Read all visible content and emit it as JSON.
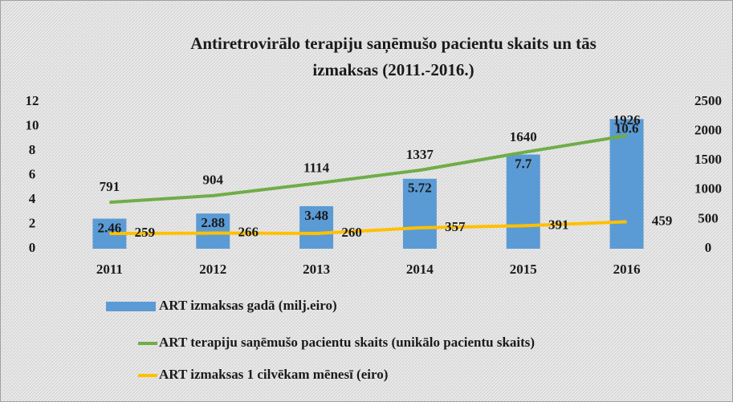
{
  "chart_data": {
    "type": "bar",
    "title": [
      "Antiretrovirālo  terapiju saņēmušo pacientu skaits un tās",
      "izmaksas  (2011.-2016.)"
    ],
    "categories": [
      "2011",
      "2012",
      "2013",
      "2014",
      "2015",
      "2016"
    ],
    "series": [
      {
        "name": "ART izmaksas gadā (milj.eiro)",
        "type": "bar",
        "color": "#5b9bd5",
        "values": [
          2.46,
          2.88,
          3.48,
          5.72,
          7.7,
          10.6
        ]
      },
      {
        "name": "ART terapiju saņēmušo pacientu skaits (unikālo pacientu skaits)",
        "type": "line",
        "axis": "y2",
        "color": "#70ad47",
        "values": [
          791,
          904,
          1114,
          1337,
          1640,
          1926
        ]
      },
      {
        "name": "ART izmaksas 1 cilvēkam mēnesī (eiro)",
        "type": "line",
        "axis": "y2",
        "color": "#ffc000",
        "values": [
          259,
          266,
          260,
          357,
          391,
          459
        ]
      }
    ],
    "ylim": [
      0,
      12
    ],
    "yticks": [
      0,
      2,
      4,
      6,
      8,
      10,
      12
    ],
    "y2lim": [
      0,
      2500
    ],
    "y2ticks": [
      0,
      500,
      1000,
      1500,
      2000,
      2500
    ],
    "grid": false,
    "legend": "bottom"
  }
}
